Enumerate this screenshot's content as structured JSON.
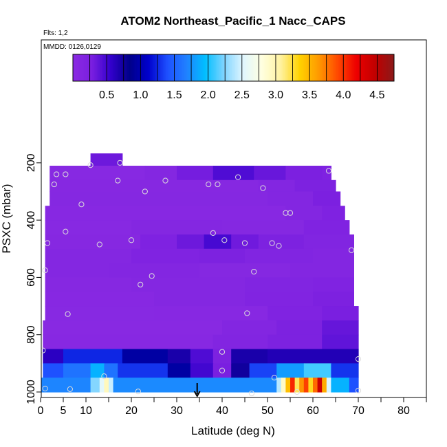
{
  "chart_data": {
    "type": "heatmap",
    "title": "ATOM2 Northeast_Pacific_1 Nacc_CAPS",
    "info_lines": [
      "Flts: 1,2",
      "MMDD: 0126,0129"
    ],
    "xlabel": "Latitude (deg N)",
    "ylabel": "PSXC (mbar)",
    "xlim": [
      0,
      85
    ],
    "ylim": [
      1000,
      0
    ],
    "x_tick_values": [
      0,
      5,
      10,
      15,
      20,
      25,
      30,
      35,
      40,
      45,
      50,
      55,
      60,
      65,
      70,
      75,
      80,
      85
    ],
    "x_tick_labels": [
      "0",
      "5",
      "10",
      "",
      "20",
      "",
      "30",
      "",
      "40",
      "",
      "50",
      "",
      "60",
      "",
      "70",
      "",
      "80",
      ""
    ],
    "y_ticks": [
      200,
      400,
      600,
      800,
      1000
    ],
    "colorbar": {
      "min": 0,
      "max": 4.75,
      "ticks": [
        0.5,
        1.0,
        1.5,
        2.0,
        2.5,
        3.0,
        3.5,
        4.0,
        4.5
      ],
      "tick_labels": [
        "0.5",
        "1.0",
        "1.5",
        "2.0",
        "2.5",
        "3.0",
        "3.5",
        "4.0",
        "4.5"
      ],
      "colors": [
        "#8a2be2",
        "#7a1fe0",
        "#3300cc",
        "#000088",
        "#0000cc",
        "#1e50ff",
        "#2080ff",
        "#00bfff",
        "#7fd4ff",
        "#dff6ff",
        "#ffffe0",
        "#fff2a0",
        "#ffd200",
        "#ff9a00",
        "#ff4a00",
        "#ee0000",
        "#c00000",
        "#8b1a1a"
      ]
    },
    "layers": [
      {
        "p_top": 167,
        "p_bot": 210,
        "cells": [
          [
            11,
            18,
            0.33
          ]
        ]
      },
      {
        "p_top": 210,
        "p_bot": 260,
        "cells": [
          [
            2,
            23,
            0.05
          ],
          [
            23,
            30,
            0.1
          ],
          [
            30,
            38,
            0.3
          ],
          [
            38,
            47,
            0.45
          ],
          [
            47,
            54,
            0.35
          ],
          [
            54,
            62,
            0.25
          ],
          [
            62,
            64,
            0.2
          ]
        ]
      },
      {
        "p_top": 260,
        "p_bot": 300,
        "cells": [
          [
            2,
            48,
            0.07
          ],
          [
            48,
            56,
            0.12
          ],
          [
            56,
            65,
            0.22
          ]
        ]
      },
      {
        "p_top": 300,
        "p_bot": 350,
        "cells": [
          [
            2,
            50,
            0.08
          ],
          [
            50,
            60,
            0.12
          ],
          [
            60,
            66,
            0.25
          ]
        ]
      },
      {
        "p_top": 350,
        "p_bot": 400,
        "cells": [
          [
            1,
            54,
            0.06
          ],
          [
            54,
            62,
            0.12
          ],
          [
            62,
            67,
            0.2
          ]
        ]
      },
      {
        "p_top": 400,
        "p_bot": 450,
        "cells": [
          [
            1,
            20,
            0.05
          ],
          [
            20,
            40,
            0.1
          ],
          [
            40,
            58,
            0.08
          ],
          [
            58,
            68,
            0.18
          ]
        ]
      },
      {
        "p_top": 450,
        "p_bot": 500,
        "cells": [
          [
            1,
            22,
            0.07
          ],
          [
            22,
            30,
            0.2
          ],
          [
            30,
            36,
            0.33
          ],
          [
            36,
            42,
            0.48
          ],
          [
            42,
            48,
            0.32
          ],
          [
            48,
            58,
            0.22
          ],
          [
            58,
            69,
            0.15
          ]
        ]
      },
      {
        "p_top": 500,
        "p_bot": 550,
        "cells": [
          [
            1,
            20,
            0.1
          ],
          [
            20,
            35,
            0.18
          ],
          [
            35,
            45,
            0.22
          ],
          [
            45,
            60,
            0.15
          ],
          [
            60,
            69,
            0.12
          ]
        ]
      },
      {
        "p_top": 550,
        "p_bot": 600,
        "cells": [
          [
            1,
            15,
            0.1
          ],
          [
            15,
            35,
            0.12
          ],
          [
            35,
            55,
            0.08
          ],
          [
            55,
            69,
            0.12
          ]
        ]
      },
      {
        "p_top": 600,
        "p_bot": 650,
        "cells": [
          [
            1,
            20,
            0.07
          ],
          [
            20,
            45,
            0.1
          ],
          [
            45,
            60,
            0.15
          ],
          [
            60,
            69,
            0.18
          ]
        ]
      },
      {
        "p_top": 650,
        "p_bot": 700,
        "cells": [
          [
            1,
            25,
            0.06
          ],
          [
            25,
            45,
            0.1
          ],
          [
            45,
            60,
            0.16
          ],
          [
            60,
            69,
            0.23
          ]
        ]
      },
      {
        "p_top": 700,
        "p_bot": 750,
        "cells": [
          [
            1,
            25,
            0.05
          ],
          [
            25,
            50,
            0.06
          ],
          [
            50,
            62,
            0.18
          ],
          [
            62,
            70,
            0.28
          ]
        ]
      },
      {
        "p_top": 750,
        "p_bot": 800,
        "cells": [
          [
            0.5,
            40,
            0.04
          ],
          [
            40,
            52,
            0.12
          ],
          [
            52,
            62,
            0.22
          ],
          [
            62,
            70,
            0.36
          ]
        ]
      },
      {
        "p_top": 800,
        "p_bot": 850,
        "cells": [
          [
            0.5,
            38,
            0.06
          ],
          [
            38,
            50,
            0.14
          ],
          [
            50,
            62,
            0.22
          ],
          [
            62,
            70,
            0.38
          ]
        ]
      },
      {
        "p_top": 850,
        "p_bot": 900,
        "cells": [
          [
            0.5,
            5,
            0.6
          ],
          [
            5,
            18,
            1.25
          ],
          [
            18,
            28,
            0.95
          ],
          [
            28,
            33,
            0.7
          ],
          [
            33,
            38,
            0.45
          ],
          [
            38,
            42,
            0.22
          ],
          [
            42,
            50,
            0.7
          ],
          [
            50,
            70,
            0.65
          ]
        ]
      },
      {
        "p_top": 900,
        "p_bot": 950,
        "cells": [
          [
            0.5,
            5,
            1.4
          ],
          [
            5,
            11,
            1.6
          ],
          [
            11,
            14,
            1.9
          ],
          [
            14,
            17,
            1.6
          ],
          [
            17,
            28,
            1.3
          ],
          [
            28,
            33,
            0.95
          ],
          [
            33,
            38,
            0.5
          ],
          [
            38,
            42,
            0.28
          ],
          [
            42,
            46,
            0.75
          ],
          [
            46,
            52,
            1.35
          ],
          [
            52,
            58,
            1.8
          ],
          [
            58,
            64,
            2.1
          ],
          [
            64,
            70,
            1.3
          ]
        ]
      },
      {
        "p_top": 950,
        "p_bot": 1000,
        "cells": [
          [
            0,
            11,
            1.7
          ],
          [
            11,
            13,
            2.25
          ],
          [
            13,
            14,
            2.55
          ],
          [
            14,
            15,
            2.95
          ],
          [
            15,
            16,
            2.45
          ],
          [
            16,
            52,
            1.72
          ],
          [
            52,
            53,
            2.4
          ],
          [
            53,
            54,
            2.9
          ],
          [
            54,
            55,
            3.45
          ],
          [
            55,
            56,
            4.05
          ],
          [
            56,
            57,
            3.2
          ],
          [
            57,
            58,
            3.65
          ],
          [
            58,
            59,
            3.95
          ],
          [
            59,
            60,
            3.3
          ],
          [
            60,
            61,
            3.8
          ],
          [
            61,
            62,
            4.4
          ],
          [
            62,
            63,
            3.55
          ],
          [
            63,
            64,
            2.5
          ],
          [
            64,
            68,
            1.9
          ],
          [
            68,
            70,
            1.4
          ]
        ]
      }
    ],
    "points": [
      [
        11,
        208
      ],
      [
        17.5,
        200
      ],
      [
        3.5,
        240
      ],
      [
        5.5,
        240
      ],
      [
        3,
        275
      ],
      [
        17,
        262
      ],
      [
        23,
        300
      ],
      [
        27.5,
        262
      ],
      [
        37,
        275
      ],
      [
        39,
        275
      ],
      [
        43.5,
        250
      ],
      [
        49,
        288
      ],
      [
        63.5,
        228
      ],
      [
        9,
        345
      ],
      [
        54,
        375
      ],
      [
        55,
        375
      ],
      [
        5.5,
        440
      ],
      [
        38,
        445
      ],
      [
        1.5,
        480
      ],
      [
        13,
        485
      ],
      [
        20,
        470
      ],
      [
        40.5,
        470
      ],
      [
        45,
        480
      ],
      [
        51,
        480
      ],
      [
        52.5,
        490
      ],
      [
        68.5,
        505
      ],
      [
        1,
        575
      ],
      [
        47,
        580
      ],
      [
        24.5,
        595
      ],
      [
        22,
        625
      ],
      [
        6,
        728
      ],
      [
        45.5,
        725
      ],
      [
        0.5,
        855
      ],
      [
        40,
        860
      ],
      [
        70,
        885
      ],
      [
        40,
        925
      ],
      [
        14,
        945
      ],
      [
        51.5,
        950
      ],
      [
        1,
        988
      ],
      [
        6.5,
        990
      ],
      [
        21.5,
        998
      ],
      [
        46.5,
        1005
      ],
      [
        56.5,
        1000
      ],
      [
        70,
        995
      ]
    ],
    "arrow_x": 34.5
  }
}
